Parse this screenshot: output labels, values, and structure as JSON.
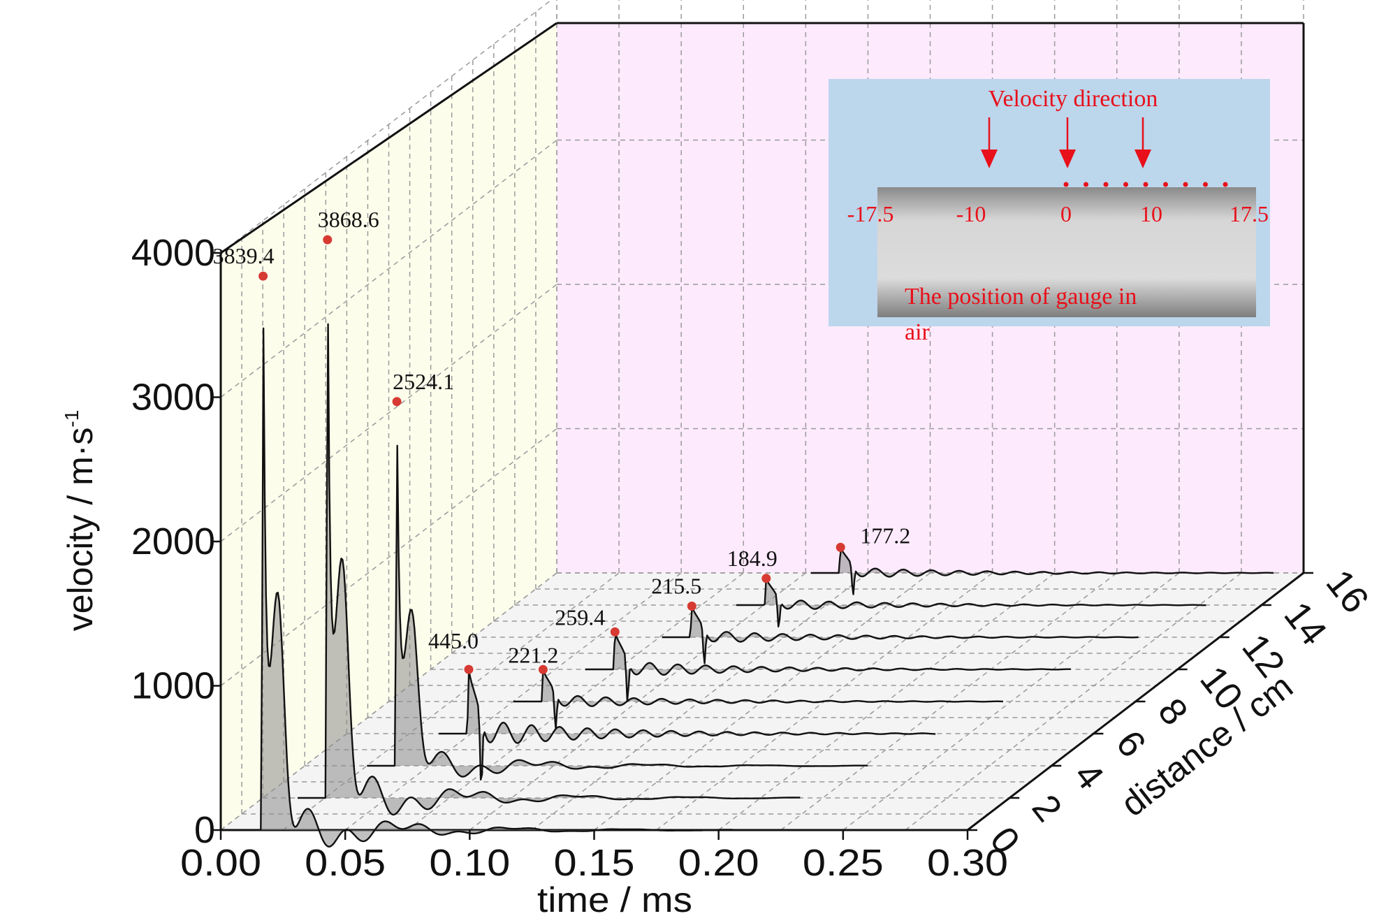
{
  "chart_data": {
    "type": "line",
    "subtype": "3d-waterfall",
    "title": "",
    "xlabel": "time / ms",
    "ylabel": "velocity / m·s",
    "ylabel_superscript": "-1",
    "zlabel": "distance / cm",
    "xlim": [
      0.0,
      0.3
    ],
    "ylim": [
      0,
      4000
    ],
    "zlim": [
      0,
      16
    ],
    "x_ticks": [
      "0.00",
      "0.05",
      "0.10",
      "0.15",
      "0.20",
      "0.25",
      "0.30"
    ],
    "y_ticks": [
      "0",
      "1000",
      "2000",
      "3000",
      "4000"
    ],
    "z_ticks": [
      "0",
      "2",
      "4",
      "6",
      "8",
      "10",
      "12",
      "14",
      "16"
    ],
    "grid": true,
    "colors": {
      "back_wall": "#fdeafd",
      "side_wall": "#fdfdec",
      "floor": "#f4f4f4",
      "fill": "#8c8c8c",
      "line": "#111111",
      "peak_marker": "#d63a32",
      "inset_bg": "#bcd6ec",
      "inset_text": "#e8101a"
    },
    "series": [
      {
        "distance": 0,
        "peak_time": 0.017,
        "peak_value": 3839.4,
        "label": "3839.4"
      },
      {
        "distance": 2,
        "peak_time": 0.026,
        "peak_value": 3868.6,
        "label": "3868.6"
      },
      {
        "distance": 4,
        "peak_time": 0.037,
        "peak_value": 2524.1,
        "label": "2524.1"
      },
      {
        "distance": 6,
        "peak_time": 0.049,
        "peak_value": 445.0,
        "label": "445.0"
      },
      {
        "distance": 8,
        "peak_time": 0.062,
        "peak_value": 221.2,
        "label": "221.2"
      },
      {
        "distance": 10,
        "peak_time": 0.074,
        "peak_value": 259.4,
        "label": "259.4"
      },
      {
        "distance": 12,
        "peak_time": 0.088,
        "peak_value": 215.5,
        "label": "215.5"
      },
      {
        "distance": 14,
        "peak_time": 0.101,
        "peak_value": 184.9,
        "label": "184.9"
      },
      {
        "distance": 16,
        "peak_time": 0.114,
        "peak_value": 177.2,
        "label": "177.2"
      }
    ]
  },
  "inset": {
    "title": "Velocity direction",
    "positions": [
      "-17.5",
      "-10",
      "0",
      "10",
      "17.5"
    ],
    "caption_line1": "The position of gauge in",
    "caption_line2": "air"
  }
}
